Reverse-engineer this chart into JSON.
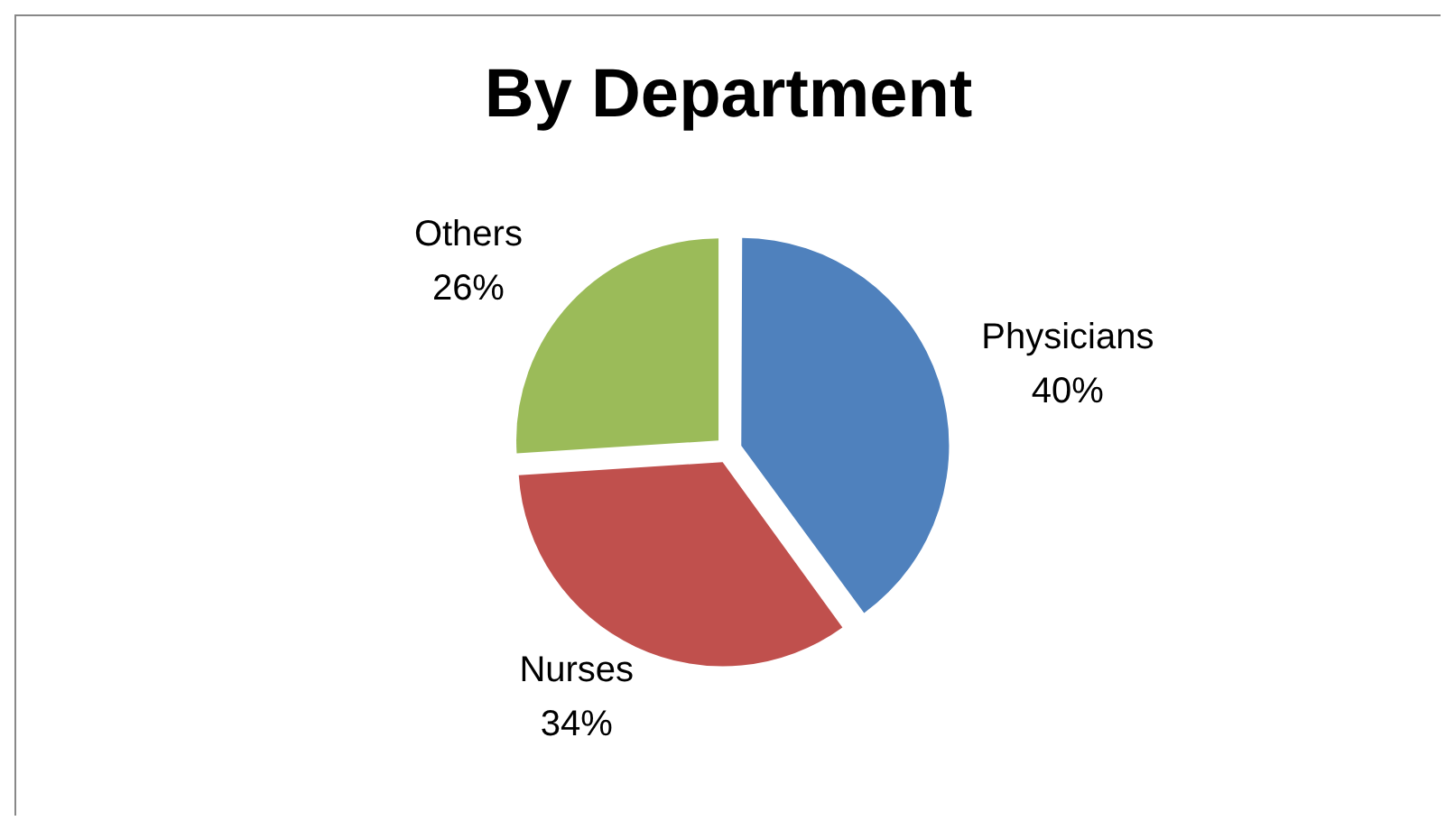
{
  "chart_data": {
    "type": "pie",
    "title": "By Department",
    "categories": [
      "Physicians",
      "Nurses",
      "Others"
    ],
    "values": [
      40,
      34,
      26
    ],
    "value_labels": [
      "40%",
      "34%",
      "26%"
    ],
    "colors": [
      "#4f81bd",
      "#c0504d",
      "#9bbb59"
    ],
    "legend": false
  }
}
